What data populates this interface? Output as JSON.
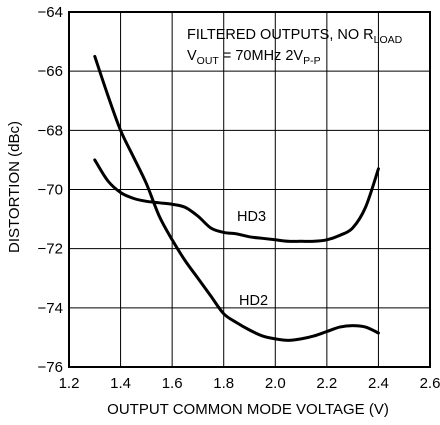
{
  "chart_data": {
    "type": "line",
    "xlabel": "OUTPUT COMMON MODE VOLTAGE (V)",
    "ylabel": "DISTORTION (dBc)",
    "xlim": [
      1.2,
      2.6
    ],
    "ylim": [
      -76,
      -64
    ],
    "xticks": [
      "1.2",
      "1.4",
      "1.6",
      "1.8",
      "2.0",
      "2.2",
      "2.4",
      "2.6"
    ],
    "yticks": [
      "−64",
      "−66",
      "−68",
      "−70",
      "−72",
      "−74",
      "−76"
    ],
    "grid": true,
    "annotation": {
      "line1_main": "FILTERED OUTPUTS, NO R",
      "line1_sub": "LOAD",
      "line2_v": "V",
      "line2_sub1": "OUT",
      "line2_mid": " = 70MHz 2V",
      "line2_sub2": "P-P"
    },
    "series": [
      {
        "name": "HD3",
        "x": [
          1.3,
          1.35,
          1.4,
          1.45,
          1.5,
          1.55,
          1.6,
          1.65,
          1.7,
          1.75,
          1.8,
          1.85,
          1.9,
          1.95,
          2.0,
          2.05,
          2.1,
          2.15,
          2.2,
          2.25,
          2.3,
          2.35,
          2.4
        ],
        "y": [
          -69.0,
          -69.7,
          -70.1,
          -70.3,
          -70.4,
          -70.45,
          -70.5,
          -70.6,
          -70.9,
          -71.3,
          -71.45,
          -71.5,
          -71.6,
          -71.65,
          -71.7,
          -71.75,
          -71.75,
          -71.75,
          -71.7,
          -71.55,
          -71.3,
          -70.6,
          -69.3
        ]
      },
      {
        "name": "HD2",
        "x": [
          1.3,
          1.35,
          1.4,
          1.45,
          1.5,
          1.55,
          1.6,
          1.65,
          1.7,
          1.75,
          1.8,
          1.85,
          1.9,
          1.95,
          2.0,
          2.05,
          2.1,
          2.15,
          2.2,
          2.25,
          2.3,
          2.35,
          2.4
        ],
        "y": [
          -65.5,
          -66.8,
          -68.0,
          -68.9,
          -69.8,
          -70.9,
          -71.7,
          -72.4,
          -73.0,
          -73.6,
          -74.2,
          -74.5,
          -74.75,
          -74.95,
          -75.05,
          -75.1,
          -75.05,
          -74.95,
          -74.8,
          -74.65,
          -74.6,
          -74.65,
          -74.85
        ]
      }
    ]
  }
}
